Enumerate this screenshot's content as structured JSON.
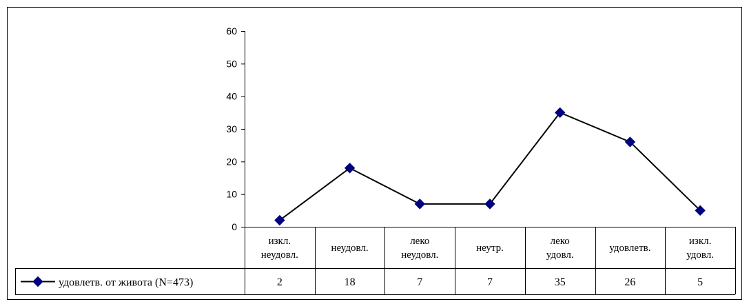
{
  "chart_data": {
    "type": "line",
    "categories": [
      [
        "изкл.",
        "неудовл."
      ],
      [
        "неудовл."
      ],
      [
        "леко",
        "неудовл."
      ],
      [
        "неутр."
      ],
      [
        "леко",
        "удовл."
      ],
      [
        "удовлетв."
      ],
      [
        "изкл.",
        "удовл."
      ]
    ],
    "series": [
      {
        "name": "удовлетв. от живота (N=473)",
        "values": [
          2,
          18,
          7,
          7,
          35,
          26,
          5
        ],
        "color": "#000080"
      }
    ],
    "value_labels": [
      "2",
      "18",
      "7",
      "7",
      "35",
      "26",
      "5"
    ],
    "yticks": [
      "0",
      "10",
      "20",
      "30",
      "40",
      "50",
      "60"
    ],
    "ylim": [
      0,
      60
    ],
    "grid": false,
    "legend": "bottom-left, inside data table",
    "data_table": true
  }
}
